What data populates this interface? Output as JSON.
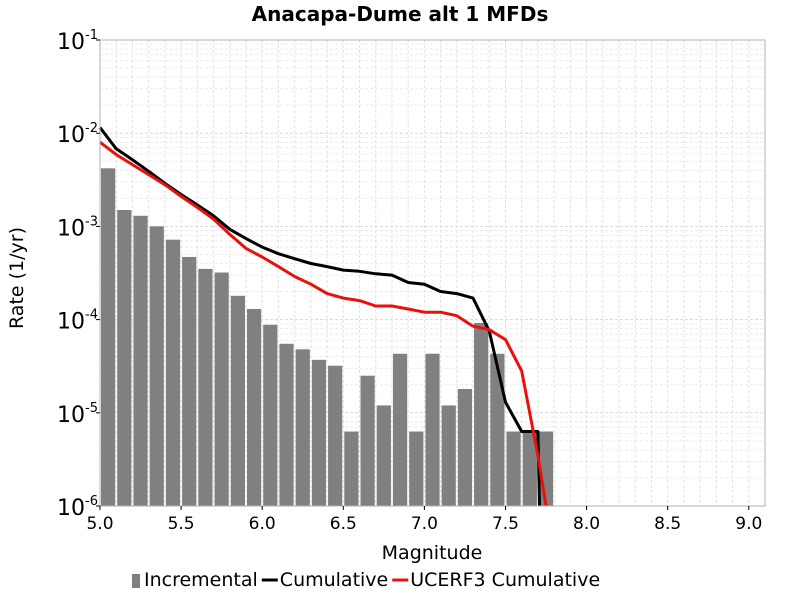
{
  "chart_data": {
    "type": "bar",
    "title": "Anacapa-Dume alt 1 MFDs",
    "xlabel": "Magnitude",
    "ylabel": "Rate (1/yr)",
    "xlim": [
      5.0,
      9.1
    ],
    "ylim": [
      1e-06,
      0.1
    ],
    "yscale": "log",
    "grid": true,
    "legend_position": "bottom",
    "xticks": [
      "5.0",
      "5.5",
      "6.0",
      "6.5",
      "7.0",
      "7.5",
      "8.0",
      "8.5",
      "9.0"
    ],
    "yticks": [
      {
        "base": "10",
        "exp": "-6"
      },
      {
        "base": "10",
        "exp": "-5"
      },
      {
        "base": "10",
        "exp": "-4"
      },
      {
        "base": "10",
        "exp": "-3"
      },
      {
        "base": "10",
        "exp": "-2"
      },
      {
        "base": "10",
        "exp": "-1"
      }
    ],
    "series": [
      {
        "name": "Incremental",
        "kind": "bar",
        "color": "#808080",
        "x": [
          5.05,
          5.15,
          5.25,
          5.35,
          5.45,
          5.55,
          5.65,
          5.75,
          5.85,
          5.95,
          6.05,
          6.15,
          6.25,
          6.35,
          6.45,
          6.55,
          6.65,
          6.75,
          6.85,
          6.95,
          7.05,
          7.15,
          7.25,
          7.35,
          7.45,
          7.55,
          7.65,
          7.75
        ],
        "values": [
          0.0042,
          0.0015,
          0.0013,
          0.001,
          0.00072,
          0.00047,
          0.00035,
          0.00032,
          0.00018,
          0.00013,
          8.8e-05,
          5.5e-05,
          4.8e-05,
          3.7e-05,
          3.2e-05,
          6.3e-06,
          2.5e-05,
          1.2e-05,
          4.3e-05,
          6.3e-06,
          4.3e-05,
          1.2e-05,
          1.8e-05,
          9.2e-05,
          4.3e-05,
          6.3e-06,
          6.3e-06,
          6.3e-06
        ]
      },
      {
        "name": "Cumulative",
        "kind": "line",
        "color": "#000000",
        "x": [
          5.0,
          5.1,
          5.2,
          5.3,
          5.4,
          5.5,
          5.6,
          5.7,
          5.8,
          5.9,
          6.0,
          6.1,
          6.2,
          6.3,
          6.4,
          6.5,
          6.6,
          6.7,
          6.8,
          6.9,
          7.0,
          7.1,
          7.2,
          7.3,
          7.4,
          7.5,
          7.6,
          7.7,
          7.71
        ],
        "values": [
          0.0115,
          0.0068,
          0.0052,
          0.0039,
          0.0029,
          0.0022,
          0.0017,
          0.0013,
          0.00093,
          0.00074,
          0.0006,
          0.00051,
          0.00045,
          0.0004,
          0.00037,
          0.00034,
          0.00033,
          0.00031,
          0.0003,
          0.00025,
          0.00024,
          0.0002,
          0.00019,
          0.00017,
          7.5e-05,
          1.3e-05,
          6.3e-06,
          6.3e-06,
          1e-06
        ]
      },
      {
        "name": "UCERF3 Cumulative",
        "kind": "line",
        "color": "#e8120c",
        "x": [
          5.0,
          5.1,
          5.2,
          5.3,
          5.4,
          5.5,
          5.6,
          5.7,
          5.8,
          5.9,
          6.0,
          6.1,
          6.2,
          6.3,
          6.4,
          6.5,
          6.6,
          6.7,
          6.8,
          6.9,
          7.0,
          7.1,
          7.2,
          7.3,
          7.4,
          7.5,
          7.6,
          7.7,
          7.75
        ],
        "values": [
          0.008,
          0.0059,
          0.0046,
          0.0036,
          0.0028,
          0.0021,
          0.0016,
          0.0012,
          0.00082,
          0.00058,
          0.00047,
          0.00037,
          0.00029,
          0.00024,
          0.00019,
          0.00017,
          0.00016,
          0.00014,
          0.00014,
          0.00013,
          0.00012,
          0.00012,
          0.00011,
          8.5e-05,
          7.8e-05,
          6.1e-05,
          2.8e-05,
          3.5e-06,
          1e-06
        ]
      }
    ]
  }
}
